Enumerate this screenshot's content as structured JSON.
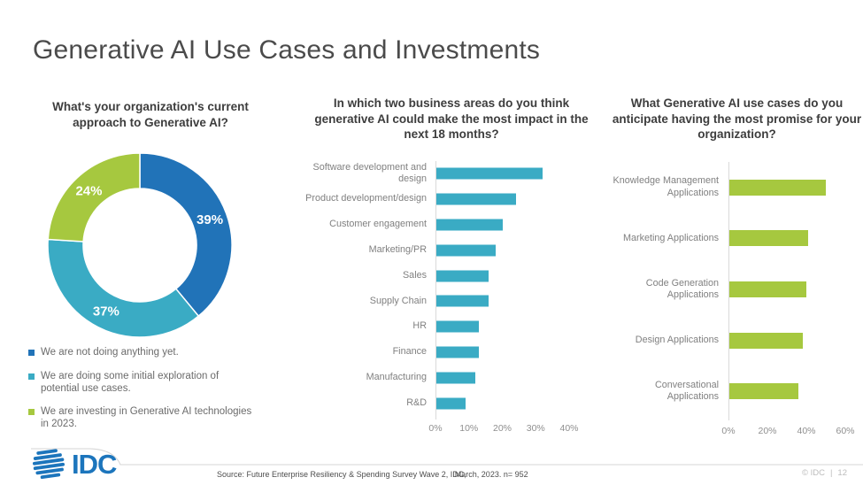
{
  "slide": {
    "title": "Generative AI Use Cases and Investments"
  },
  "chart_data": [
    {
      "type": "pie",
      "subtype": "donut",
      "title": "What's your organization's current approach to Generative AI?",
      "unit": "%",
      "start_angle": "12 o'clock",
      "direction": "clockwise",
      "legend_position": "bottom-left",
      "segments": [
        {
          "label": "We are not doing anything yet.",
          "value": 39,
          "color": "#2173b8"
        },
        {
          "label": "We are doing some initial exploration of potential use cases.",
          "value": 37,
          "color": "#3aabc4"
        },
        {
          "label": "We are investing in Generative AI technologies in 2023.",
          "value": 24,
          "color": "#a6c83f"
        }
      ]
    },
    {
      "type": "bar",
      "orientation": "horizontal",
      "title": "In which two business areas do you think generative AI could make the most impact in the next 18 months?",
      "categories": [
        "Software development and design",
        "Product development/design",
        "Customer engagement",
        "Marketing/PR",
        "Sales",
        "Supply Chain",
        "HR",
        "Finance",
        "Manufacturing",
        "R&D"
      ],
      "values": [
        32,
        24,
        20,
        18,
        16,
        16,
        13,
        13,
        12,
        9
      ],
      "unit": "%",
      "color": "#3aabc4",
      "xlim": [
        0,
        40
      ],
      "xticks": [
        "0%",
        "10%",
        "20%",
        "30%",
        "40%"
      ],
      "grid": false
    },
    {
      "type": "bar",
      "orientation": "horizontal",
      "title": "What Generative AI use cases do you anticipate having the most promise for your organization?",
      "categories": [
        "Knowledge Management Applications",
        "Marketing Applications",
        "Code Generation Applications",
        "Design Applications",
        "Conversational Applications"
      ],
      "values": [
        50,
        41,
        40,
        38,
        36
      ],
      "unit": "%",
      "color": "#a6c83f",
      "xlim": [
        0,
        60
      ],
      "xticks": [
        "0%",
        "20%",
        "40%",
        "60%"
      ],
      "grid": false
    }
  ],
  "footer": {
    "source_part1": "Source: Future Enterprise Resiliency & Spending Survey Wave 2, IDC,",
    "source_part2": "March, 2023. n= 952",
    "copyright": "© IDC",
    "separator": "|",
    "page_number": "12",
    "logo_text": "IDC",
    "logo_color": "#1c75bc"
  }
}
